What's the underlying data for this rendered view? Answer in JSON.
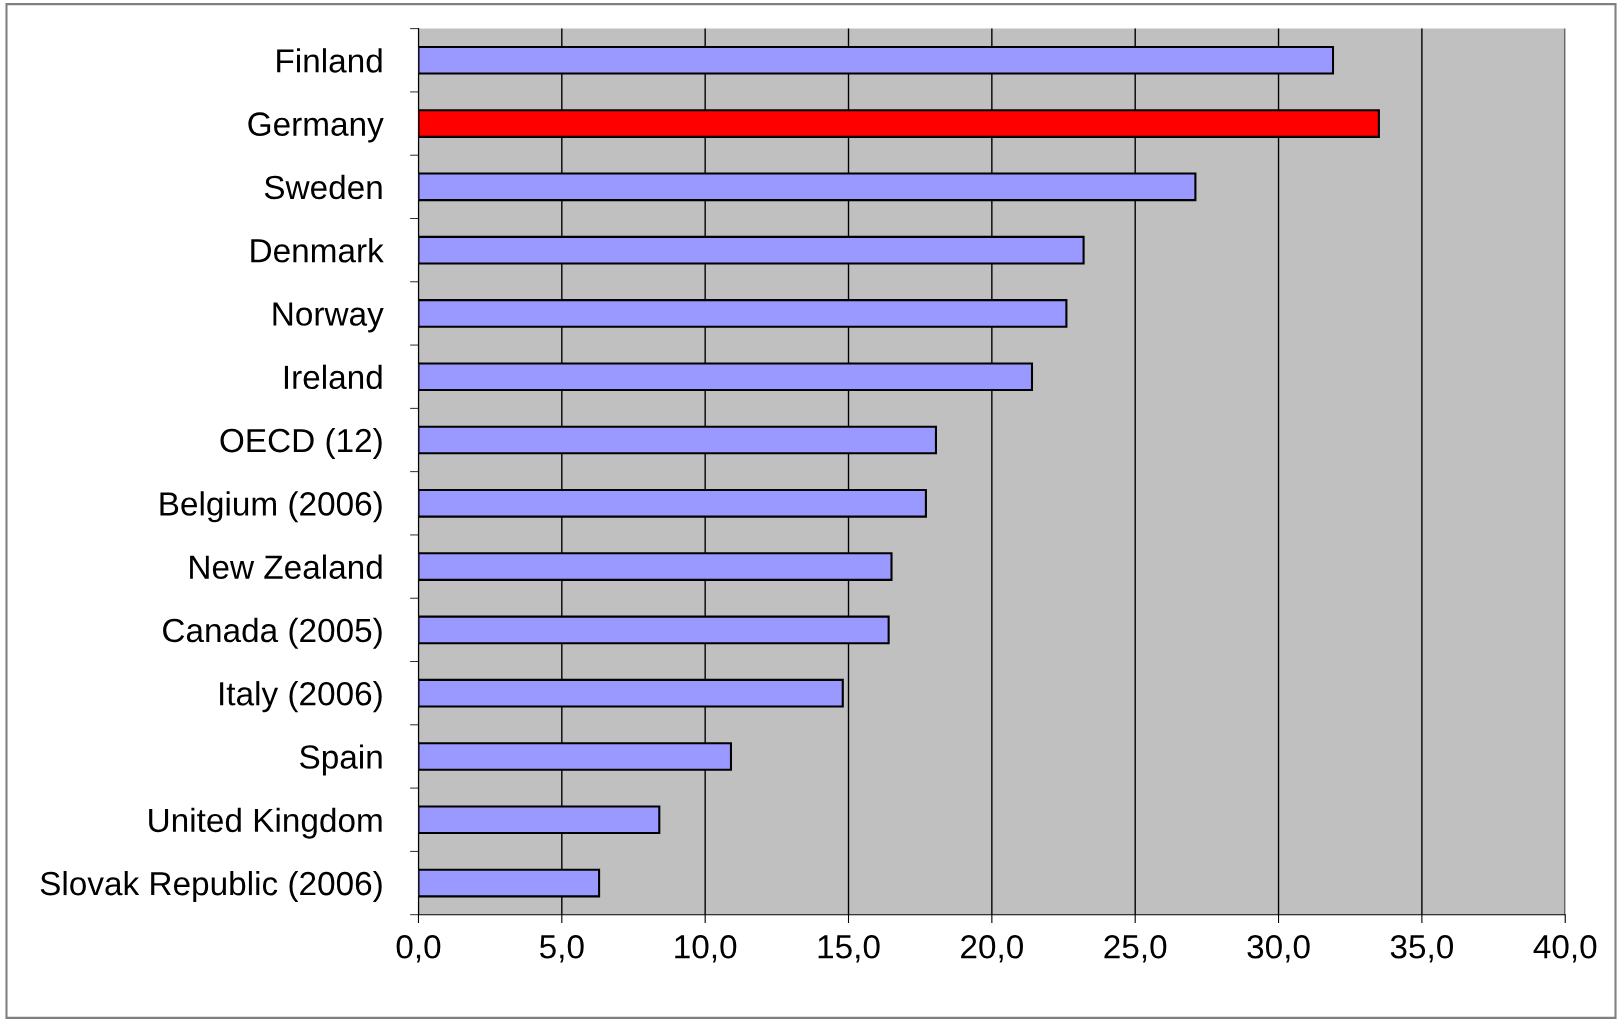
{
  "chart_data": {
    "type": "bar",
    "orientation": "horizontal",
    "categories": [
      "Finland",
      "Germany",
      "Sweden",
      "Denmark",
      "Norway",
      "Ireland",
      "OECD (12)",
      "Belgium (2006)",
      "New Zealand",
      "Canada (2005)",
      "Italy (2006)",
      "Spain",
      "United Kingdom",
      "Slovak Republic (2006)"
    ],
    "values": [
      31.9,
      33.5,
      27.1,
      23.2,
      22.6,
      21.4,
      18.05,
      17.7,
      16.5,
      16.4,
      14.8,
      10.9,
      8.4,
      6.3
    ],
    "colors": [
      "#9999ff",
      "#ff0000",
      "#9999ff",
      "#9999ff",
      "#9999ff",
      "#9999ff",
      "#9999ff",
      "#9999ff",
      "#9999ff",
      "#9999ff",
      "#9999ff",
      "#9999ff",
      "#9999ff",
      "#9999ff"
    ],
    "xlim": [
      0,
      40
    ],
    "xticks": [
      {
        "value": 0,
        "label": "0,0"
      },
      {
        "value": 5,
        "label": "5,0"
      },
      {
        "value": 10,
        "label": "10,0"
      },
      {
        "value": 15,
        "label": "15,0"
      },
      {
        "value": 20,
        "label": "20,0"
      },
      {
        "value": 25,
        "label": "25,0"
      },
      {
        "value": 30,
        "label": "30,0"
      },
      {
        "value": 35,
        "label": "35,0"
      },
      {
        "value": 40,
        "label": "40,0"
      }
    ],
    "grid": "x",
    "legend": false
  }
}
